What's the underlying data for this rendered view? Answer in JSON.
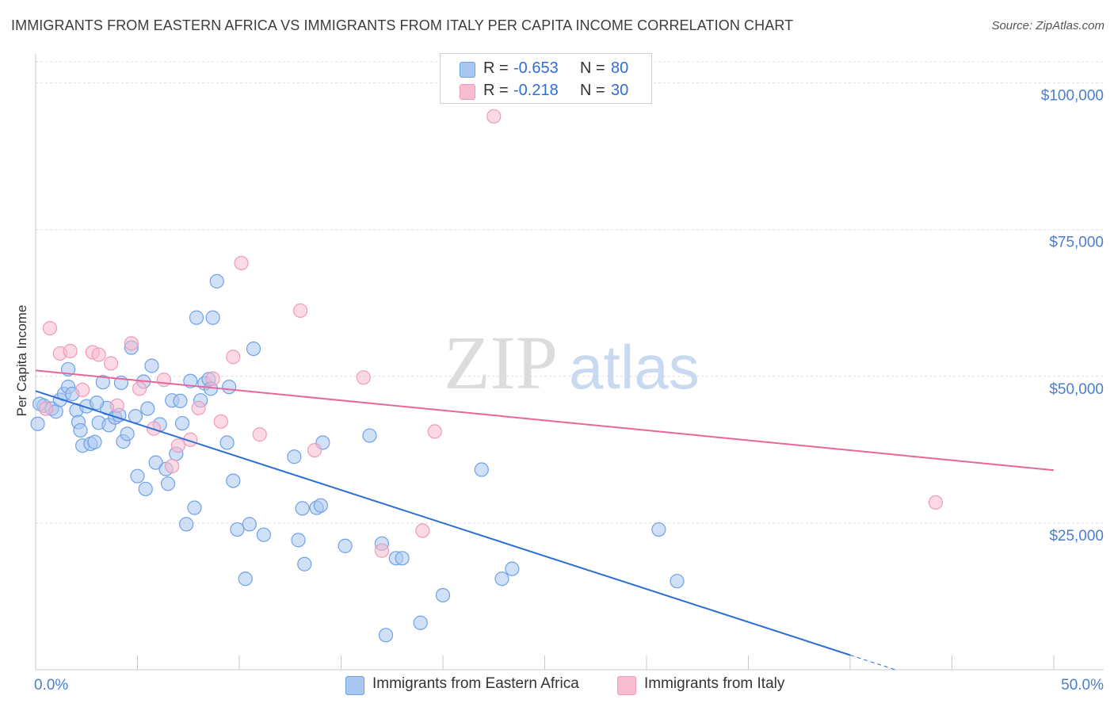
{
  "title": "IMMIGRANTS FROM EASTERN AFRICA VS IMMIGRANTS FROM ITALY PER CAPITA INCOME CORRELATION CHART",
  "source": "Source: ZipAtlas.com",
  "watermark": {
    "zip": "ZIP",
    "atlas": "atlas"
  },
  "legend": {
    "rows": [
      {
        "r_label": "R =",
        "r_value": "-0.653",
        "n_label": "N =",
        "n_value": "80",
        "color": "#a9c6f0"
      },
      {
        "r_label": "R =",
        "r_value": "-0.218",
        "n_label": "N =",
        "n_value": "30",
        "color": "#f7bcd0"
      }
    ]
  },
  "chart_data": {
    "type": "scatter",
    "ylabel": "Per Capita Income",
    "xlim": [
      0,
      50
    ],
    "ylim": [
      0,
      104000
    ],
    "x_tick_labels": [
      "0.0%",
      "50.0%"
    ],
    "y_ticks": [
      {
        "value": 25000,
        "label": "$25,000"
      },
      {
        "value": 50000,
        "label": "$50,000"
      },
      {
        "value": 75000,
        "label": "$75,000"
      },
      {
        "value": 100000,
        "label": "$100,000"
      }
    ],
    "grid": true,
    "series": [
      {
        "name": "Immigrants from Eastern Africa",
        "color": "#6fa1e6",
        "fill": "#a9c6f0",
        "line_color": "#2c6fd2",
        "trend": {
          "x0": 0,
          "y0": 47500,
          "x1": 40,
          "y1": 2500,
          "dash_to_x": 42.2
        },
        "points": [
          [
            0.4,
            45000
          ],
          [
            0.8,
            44500
          ],
          [
            1.0,
            44000
          ],
          [
            1.2,
            46000
          ],
          [
            1.4,
            47000
          ],
          [
            1.6,
            48200
          ],
          [
            1.6,
            51200
          ],
          [
            1.8,
            47000
          ],
          [
            2.0,
            44200
          ],
          [
            2.1,
            42200
          ],
          [
            2.3,
            38200
          ],
          [
            2.5,
            44900
          ],
          [
            2.7,
            38500
          ],
          [
            2.9,
            38800
          ],
          [
            3.1,
            42100
          ],
          [
            3.3,
            49000
          ],
          [
            3.5,
            44600
          ],
          [
            3.6,
            41700
          ],
          [
            3.9,
            43000
          ],
          [
            4.1,
            43400
          ],
          [
            4.2,
            48900
          ],
          [
            4.3,
            38900
          ],
          [
            4.5,
            40200
          ],
          [
            4.7,
            54900
          ],
          [
            4.9,
            43200
          ],
          [
            5.0,
            33000
          ],
          [
            5.3,
            49100
          ],
          [
            5.4,
            30800
          ],
          [
            5.5,
            44500
          ],
          [
            5.7,
            51800
          ],
          [
            5.9,
            35300
          ],
          [
            6.1,
            41800
          ],
          [
            6.4,
            34200
          ],
          [
            6.5,
            31700
          ],
          [
            6.7,
            45900
          ],
          [
            6.9,
            36800
          ],
          [
            7.1,
            45800
          ],
          [
            7.2,
            42000
          ],
          [
            7.4,
            24800
          ],
          [
            7.6,
            49200
          ],
          [
            7.8,
            27600
          ],
          [
            7.9,
            60000
          ],
          [
            8.1,
            45900
          ],
          [
            8.3,
            48800
          ],
          [
            8.5,
            49500
          ],
          [
            8.6,
            47900
          ],
          [
            8.7,
            60000
          ],
          [
            8.9,
            66200
          ],
          [
            9.4,
            38700
          ],
          [
            9.5,
            48200
          ],
          [
            9.7,
            32200
          ],
          [
            9.9,
            23900
          ],
          [
            10.3,
            15500
          ],
          [
            10.5,
            24800
          ],
          [
            10.7,
            54700
          ],
          [
            11.2,
            23000
          ],
          [
            12.7,
            36300
          ],
          [
            12.9,
            22100
          ],
          [
            13.1,
            27500
          ],
          [
            13.2,
            18000
          ],
          [
            13.8,
            27600
          ],
          [
            14.0,
            28000
          ],
          [
            14.1,
            38700
          ],
          [
            15.2,
            21100
          ],
          [
            16.4,
            39900
          ],
          [
            17.0,
            21500
          ],
          [
            17.2,
            5900
          ],
          [
            17.7,
            19000
          ],
          [
            18.0,
            19000
          ],
          [
            18.9,
            8000
          ],
          [
            20.0,
            12700
          ],
          [
            21.9,
            34100
          ],
          [
            22.9,
            15500
          ],
          [
            23.4,
            17200
          ],
          [
            30.6,
            23900
          ],
          [
            31.5,
            15100
          ],
          [
            0.2,
            45300
          ],
          [
            0.1,
            41900
          ],
          [
            2.2,
            40800
          ],
          [
            3.0,
            45500
          ]
        ]
      },
      {
        "name": "Immigrants from Italy",
        "color": "#ef9ab8",
        "fill": "#f7bcd0",
        "line_color": "#e8679a",
        "trend": {
          "x0": 0,
          "y0": 51000,
          "x1": 50,
          "y1": 34000
        },
        "points": [
          [
            0.5,
            44500
          ],
          [
            0.7,
            58200
          ],
          [
            1.2,
            53900
          ],
          [
            1.7,
            54300
          ],
          [
            2.3,
            47700
          ],
          [
            2.8,
            54100
          ],
          [
            3.1,
            53700
          ],
          [
            3.7,
            52200
          ],
          [
            4.0,
            45000
          ],
          [
            4.7,
            55600
          ],
          [
            5.1,
            47900
          ],
          [
            5.8,
            41100
          ],
          [
            6.3,
            49400
          ],
          [
            6.7,
            34700
          ],
          [
            7.0,
            38200
          ],
          [
            7.6,
            39200
          ],
          [
            8.0,
            44600
          ],
          [
            8.7,
            49600
          ],
          [
            9.1,
            42300
          ],
          [
            9.7,
            53300
          ],
          [
            10.1,
            69300
          ],
          [
            11.0,
            40100
          ],
          [
            13.0,
            61200
          ],
          [
            13.7,
            37400
          ],
          [
            16.1,
            49800
          ],
          [
            17.0,
            20300
          ],
          [
            19.0,
            23700
          ],
          [
            19.6,
            40600
          ],
          [
            22.5,
            94300
          ],
          [
            44.2,
            28500
          ]
        ]
      }
    ]
  }
}
